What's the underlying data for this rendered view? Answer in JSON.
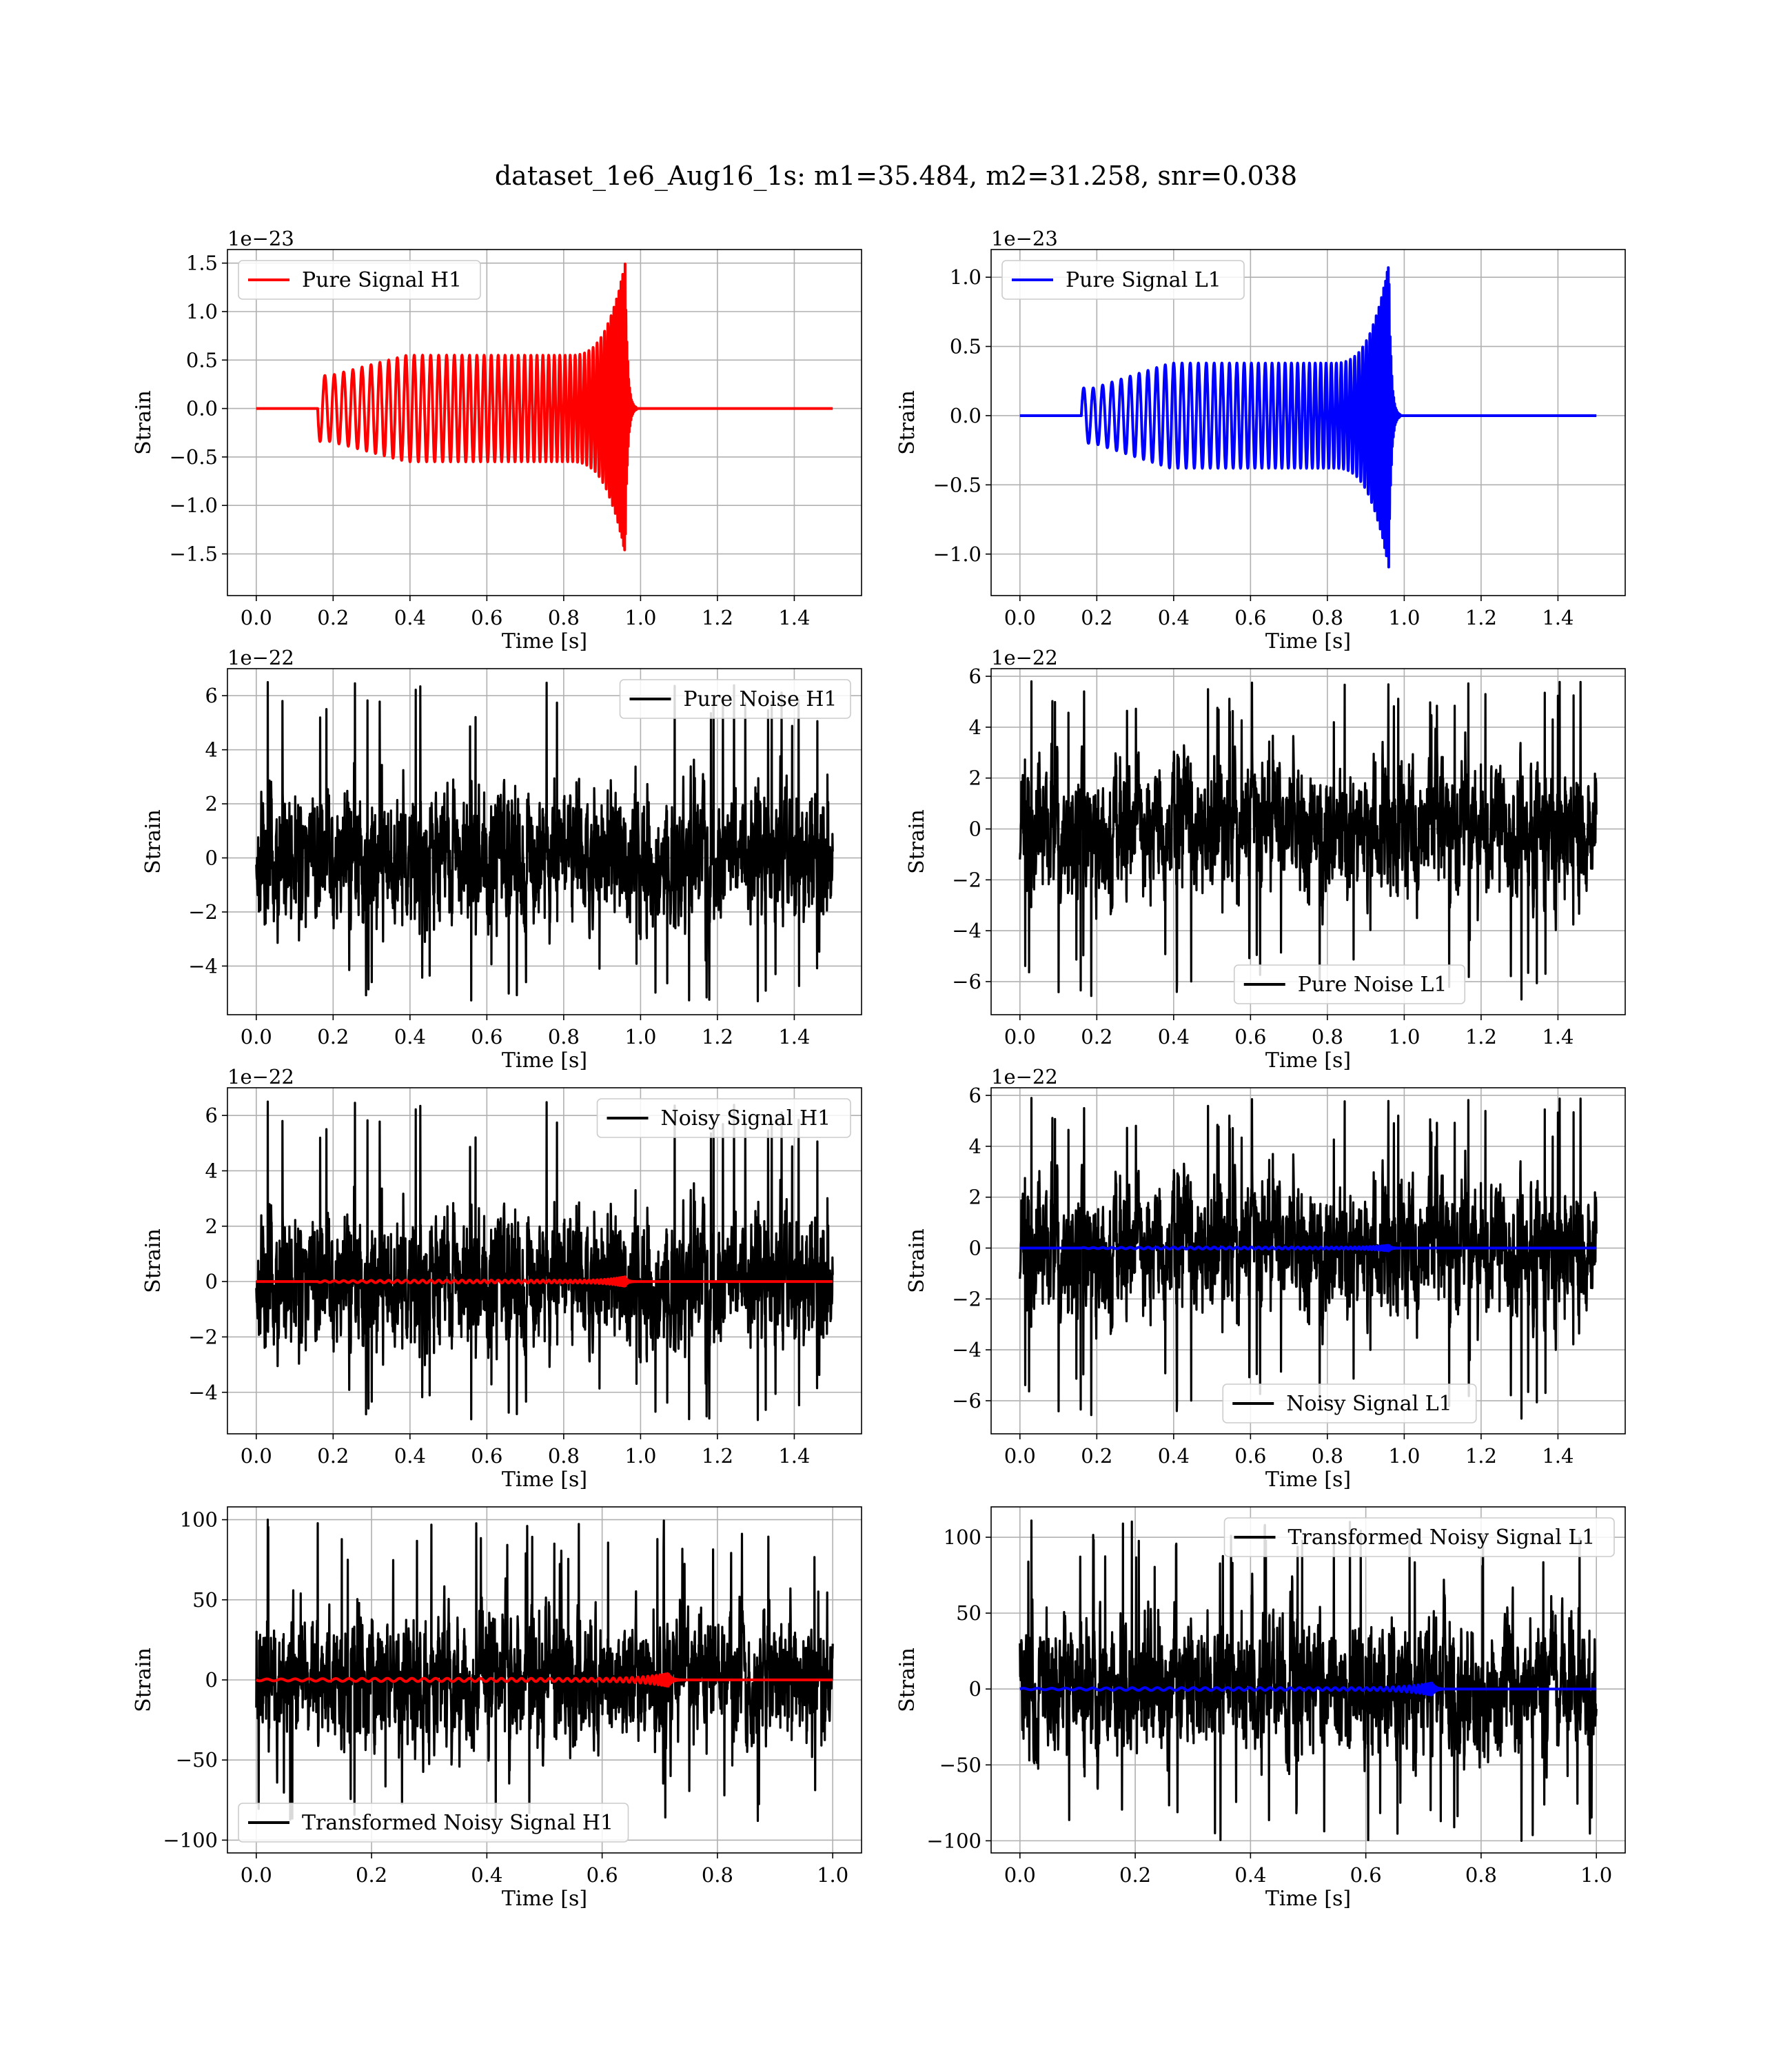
{
  "figure": {
    "title": "dataset_1e6_Aug16_1s: m1=35.484, m2=31.258, snr=0.038"
  },
  "colors": {
    "h1_signal": "#ff0000",
    "l1_signal": "#0000ff",
    "noise": "#000000",
    "grid": "#b0b0b0",
    "axes": "#000000"
  },
  "chart_data": [
    {
      "type": "line",
      "title": "",
      "xlabel": "Time [s]",
      "ylabel": "Strain",
      "offset_text": "1e−23",
      "xlim": [
        -0.075,
        1.575
      ],
      "ylim": [
        -1.93,
        1.64
      ],
      "xticks": [
        0.0,
        0.2,
        0.4,
        0.6,
        0.8,
        1.0,
        1.2,
        1.4
      ],
      "xtick_labels": [
        "0.0",
        "0.2",
        "0.4",
        "0.6",
        "0.8",
        "1.0",
        "1.2",
        "1.4"
      ],
      "yticks": [
        -1.5,
        -1.0,
        -0.5,
        0.0,
        0.5,
        1.0,
        1.5
      ],
      "ytick_labels": [
        "−1.5",
        "−1.0",
        "−0.5",
        "0.0",
        "0.5",
        "1.0",
        "1.5"
      ],
      "grid": true,
      "legend_position": "upper-left",
      "series": [
        {
          "name": "Pure Signal H1",
          "color": "#ff0000",
          "kind": "chirp",
          "x_start": 0.0,
          "x_end": 1.5,
          "onset": 0.16,
          "merger": 0.96,
          "peak": 1.5,
          "base_amplitude": 0.34,
          "plateau_amplitude": 0.55,
          "sign": -1
        }
      ]
    },
    {
      "type": "line",
      "title": "",
      "xlabel": "Time [s]",
      "ylabel": "Strain",
      "offset_text": "1e−23",
      "xlim": [
        -0.075,
        1.575
      ],
      "ylim": [
        -1.3,
        1.2
      ],
      "xticks": [
        0.0,
        0.2,
        0.4,
        0.6,
        0.8,
        1.0,
        1.2,
        1.4
      ],
      "xtick_labels": [
        "0.0",
        "0.2",
        "0.4",
        "0.6",
        "0.8",
        "1.0",
        "1.2",
        "1.4"
      ],
      "yticks": [
        -1.0,
        -0.5,
        0.0,
        0.5,
        1.0
      ],
      "ytick_labels": [
        "−1.0",
        "−0.5",
        "0.0",
        "0.5",
        "1.0"
      ],
      "grid": true,
      "legend_position": "upper-left",
      "series": [
        {
          "name": "Pure Signal L1",
          "color": "#0000ff",
          "kind": "chirp",
          "x_start": 0.0,
          "x_end": 1.5,
          "onset": 0.16,
          "merger": 0.96,
          "peak": 1.1,
          "base_amplitude": 0.2,
          "plateau_amplitude": 0.38,
          "sign": 1
        }
      ]
    },
    {
      "type": "line",
      "title": "",
      "xlabel": "Time [s]",
      "ylabel": "Strain",
      "offset_text": "1e−22",
      "xlim": [
        -0.075,
        1.575
      ],
      "ylim": [
        -5.8,
        7.0
      ],
      "xticks": [
        0.0,
        0.2,
        0.4,
        0.6,
        0.8,
        1.0,
        1.2,
        1.4
      ],
      "xtick_labels": [
        "0.0",
        "0.2",
        "0.4",
        "0.6",
        "0.8",
        "1.0",
        "1.2",
        "1.4"
      ],
      "yticks": [
        -4,
        -2,
        0,
        2,
        4,
        6
      ],
      "ytick_labels": [
        "−4",
        "−2",
        "0",
        "2",
        "4",
        "6"
      ],
      "grid": true,
      "legend_position": "upper-right",
      "series": [
        {
          "name": "Pure Noise H1",
          "color": "#000000",
          "kind": "noise",
          "x_start": 0.0,
          "x_end": 1.5,
          "min": -5.3,
          "max": 6.5,
          "seed": 11
        }
      ]
    },
    {
      "type": "line",
      "title": "",
      "xlabel": "Time [s]",
      "ylabel": "Strain",
      "offset_text": "1e−22",
      "xlim": [
        -0.075,
        1.575
      ],
      "ylim": [
        -7.3,
        6.3
      ],
      "xticks": [
        0.0,
        0.2,
        0.4,
        0.6,
        0.8,
        1.0,
        1.2,
        1.4
      ],
      "xtick_labels": [
        "0.0",
        "0.2",
        "0.4",
        "0.6",
        "0.8",
        "1.0",
        "1.2",
        "1.4"
      ],
      "yticks": [
        -6,
        -4,
        -2,
        0,
        2,
        4,
        6
      ],
      "ytick_labels": [
        "−6",
        "−4",
        "−2",
        "0",
        "2",
        "4",
        "6"
      ],
      "grid": true,
      "legend_position": "lower-center",
      "series": [
        {
          "name": "Pure Noise L1",
          "color": "#000000",
          "kind": "noise",
          "x_start": 0.0,
          "x_end": 1.5,
          "min": -6.7,
          "max": 5.8,
          "seed": 23
        }
      ]
    },
    {
      "type": "line",
      "title": "",
      "xlabel": "Time [s]",
      "ylabel": "Strain",
      "offset_text": "1e−22",
      "xlim": [
        -0.075,
        1.575
      ],
      "ylim": [
        -5.5,
        7.0
      ],
      "xticks": [
        0.0,
        0.2,
        0.4,
        0.6,
        0.8,
        1.0,
        1.2,
        1.4
      ],
      "xtick_labels": [
        "0.0",
        "0.2",
        "0.4",
        "0.6",
        "0.8",
        "1.0",
        "1.2",
        "1.4"
      ],
      "yticks": [
        -4,
        -2,
        0,
        2,
        4,
        6
      ],
      "ytick_labels": [
        "−4",
        "−2",
        "0",
        "2",
        "4",
        "6"
      ],
      "grid": true,
      "legend_position": "upper-right",
      "series": [
        {
          "name": "Noisy Signal H1",
          "color": "#000000",
          "kind": "noise",
          "x_start": 0.0,
          "x_end": 1.5,
          "min": -5.0,
          "max": 6.5,
          "seed": 11
        },
        {
          "color": "#ff0000",
          "kind": "chirp",
          "x_start": 0.0,
          "x_end": 1.5,
          "onset": 0.16,
          "merger": 0.96,
          "peak": 0.17,
          "base_amplitude": 0.03,
          "plateau_amplitude": 0.05,
          "sign": -1
        }
      ]
    },
    {
      "type": "line",
      "title": "",
      "xlabel": "Time [s]",
      "ylabel": "Strain",
      "offset_text": "1e−22",
      "xlim": [
        -0.075,
        1.575
      ],
      "ylim": [
        -7.3,
        6.3
      ],
      "xticks": [
        0.0,
        0.2,
        0.4,
        0.6,
        0.8,
        1.0,
        1.2,
        1.4
      ],
      "xtick_labels": [
        "0.0",
        "0.2",
        "0.4",
        "0.6",
        "0.8",
        "1.0",
        "1.2",
        "1.4"
      ],
      "yticks": [
        -6,
        -4,
        -2,
        0,
        2,
        4,
        6
      ],
      "ytick_labels": [
        "−6",
        "−4",
        "−2",
        "0",
        "2",
        "4",
        "6"
      ],
      "grid": true,
      "legend_position": "lower-center",
      "series": [
        {
          "name": "Noisy Signal L1",
          "color": "#000000",
          "kind": "noise",
          "x_start": 0.0,
          "x_end": 1.5,
          "min": -6.7,
          "max": 5.9,
          "seed": 23
        },
        {
          "color": "#0000ff",
          "kind": "chirp",
          "x_start": 0.0,
          "x_end": 1.5,
          "onset": 0.16,
          "merger": 0.96,
          "peak": 0.11,
          "base_amplitude": 0.02,
          "plateau_amplitude": 0.04,
          "sign": 1
        }
      ]
    },
    {
      "type": "line",
      "title": "",
      "xlabel": "Time [s]",
      "ylabel": "Strain",
      "offset_text": "",
      "xlim": [
        -0.05,
        1.05
      ],
      "ylim": [
        -108,
        108
      ],
      "xticks": [
        0.0,
        0.2,
        0.4,
        0.6,
        0.8,
        1.0
      ],
      "xtick_labels": [
        "0.0",
        "0.2",
        "0.4",
        "0.6",
        "0.8",
        "1.0"
      ],
      "yticks": [
        -100,
        -50,
        0,
        50,
        100
      ],
      "ytick_labels": [
        "−100",
        "−50",
        "0",
        "50",
        "100"
      ],
      "grid": true,
      "legend_position": "lower-left",
      "series": [
        {
          "name": "Transformed Noisy Signal H1",
          "color": "#000000",
          "kind": "noise",
          "x_start": 0.0,
          "x_end": 1.0,
          "min": -88,
          "max": 100,
          "seed": 37
        },
        {
          "color": "#ff0000",
          "kind": "chirp",
          "x_start": 0.0,
          "x_end": 1.0,
          "onset": 0.0,
          "merger": 0.715,
          "peak": 4,
          "base_amplitude": 0.6,
          "plateau_amplitude": 1.0,
          "sign": -1
        }
      ]
    },
    {
      "type": "line",
      "title": "",
      "xlabel": "Time [s]",
      "ylabel": "Strain",
      "offset_text": "",
      "xlim": [
        -0.05,
        1.05
      ],
      "ylim": [
        -108,
        120
      ],
      "xticks": [
        0.0,
        0.2,
        0.4,
        0.6,
        0.8,
        1.0
      ],
      "xtick_labels": [
        "0.0",
        "0.2",
        "0.4",
        "0.6",
        "0.8",
        "1.0"
      ],
      "yticks": [
        -100,
        -50,
        0,
        50,
        100
      ],
      "ytick_labels": [
        "−100",
        "−50",
        "0",
        "50",
        "100"
      ],
      "grid": true,
      "legend_position": "upper-right",
      "series": [
        {
          "name": "Transformed Noisy Signal L1",
          "color": "#000000",
          "kind": "noise",
          "x_start": 0.0,
          "x_end": 1.0,
          "min": -100,
          "max": 111,
          "seed": 41
        },
        {
          "color": "#0000ff",
          "kind": "chirp",
          "x_start": 0.0,
          "x_end": 1.0,
          "onset": 0.0,
          "merger": 0.715,
          "peak": 4,
          "base_amplitude": 0.5,
          "plateau_amplitude": 0.9,
          "sign": 1
        }
      ]
    }
  ]
}
